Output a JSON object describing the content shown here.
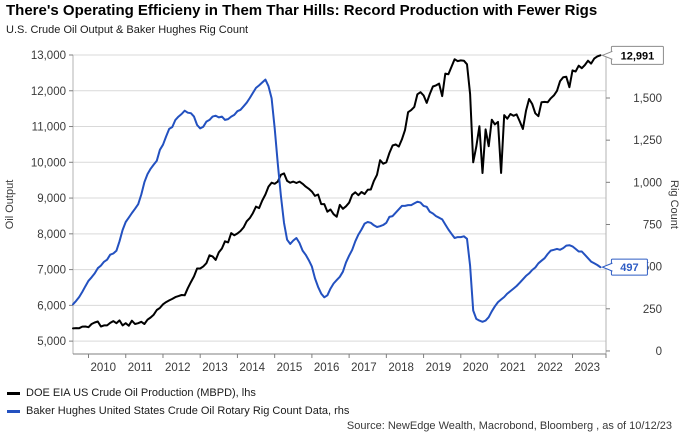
{
  "header": {
    "title": "There's Operating Efficieny in Them Thar Hills: Record Production with Fewer Rigs",
    "subtitle": "U.S. Crude Oil Output & Baker Hughes Rig Count"
  },
  "source": {
    "text": "Source: NewEdge Wealth, Macrobond, Bloomberg , as of 10/12/23"
  },
  "chart_data": {
    "type": "line",
    "title": "There's Operating Efficieny in Them Thar Hills: Record Production with Fewer Rigs",
    "subtitle": "U.S. Crude Oil Output & Baker Hughes Rig Count",
    "grid": "horizontal",
    "legend_position": "bottom-left",
    "left_axis": {
      "label": "Oil Output",
      "min": 4640,
      "max": 13000,
      "ticks": [
        {
          "v": 5000,
          "label": "5,000"
        },
        {
          "v": 6000,
          "label": "6,000"
        },
        {
          "v": 7000,
          "label": "7,000"
        },
        {
          "v": 8000,
          "label": "8,000"
        },
        {
          "v": 9000,
          "label": "9,000"
        },
        {
          "v": 10000,
          "label": "10,000"
        },
        {
          "v": 11000,
          "label": "11,000"
        },
        {
          "v": 12000,
          "label": "12,000"
        },
        {
          "v": 13000,
          "label": "13,000"
        }
      ]
    },
    "right_axis": {
      "label": "Rig Count",
      "min": -18,
      "max": 1755,
      "ticks": [
        {
          "v": 0,
          "label": "0"
        },
        {
          "v": 250,
          "label": "250"
        },
        {
          "v": 500,
          "label": "500"
        },
        {
          "v": 750,
          "label": "750"
        },
        {
          "v": 1000,
          "label": "1,000"
        },
        {
          "v": 1250,
          "label": "1,250"
        },
        {
          "v": 1500,
          "label": "1,500"
        }
      ]
    },
    "x_axis": {
      "years": [
        2010,
        2011,
        2012,
        2013,
        2014,
        2015,
        2016,
        2017,
        2018,
        2019,
        2020,
        2021,
        2022,
        2023
      ]
    },
    "callouts": [
      {
        "text": "12,991",
        "series": 0,
        "border": "#8c8c8c",
        "color": "#000000",
        "w": 52,
        "h": 18
      },
      {
        "text": "497",
        "series": 1,
        "border": "#2e5cc4",
        "color": "#2e5cc4",
        "w": 36,
        "h": 16
      }
    ],
    "series": [
      {
        "name": "DOE EIA US Crude Oil Production (MBPD), lhs",
        "axis": "left",
        "color": "#000000",
        "start_year": 2009,
        "start_month": 8,
        "frequency": "monthly",
        "values": [
          5355,
          5364,
          5360,
          5405,
          5410,
          5390,
          5480,
          5520,
          5550,
          5410,
          5440,
          5440,
          5510,
          5560,
          5500,
          5580,
          5440,
          5500,
          5430,
          5570,
          5480,
          5500,
          5540,
          5480,
          5600,
          5660,
          5740,
          5870,
          5930,
          6030,
          6090,
          6140,
          6180,
          6230,
          6260,
          6290,
          6280,
          6480,
          6650,
          6810,
          7030,
          7030,
          7090,
          7180,
          7400,
          7370,
          7270,
          7480,
          7590,
          7790,
          7760,
          8020,
          7960,
          8010,
          8080,
          8180,
          8350,
          8440,
          8580,
          8760,
          8720,
          8930,
          9100,
          9320,
          9430,
          9400,
          9460,
          9650,
          9690,
          9480,
          9430,
          9460,
          9420,
          9460,
          9400,
          9320,
          9260,
          9180,
          9060,
          9100,
          8830,
          8830,
          8620,
          8680,
          8550,
          8480,
          8810,
          8700,
          8770,
          8870,
          9090,
          9160,
          9080,
          9170,
          9110,
          9230,
          9240,
          9480,
          9650,
          10060,
          9960,
          10000,
          10260,
          10470,
          10500,
          10440,
          10640,
          10900,
          11400,
          11460,
          11550,
          11900,
          11960,
          11870,
          11660,
          11910,
          12120,
          12150,
          12200,
          11850,
          12480,
          12460,
          12670,
          12880,
          12830,
          12850,
          12840,
          12740,
          11910,
          10000,
          10440,
          11010,
          9700,
          10920,
          10450,
          11190,
          11060,
          11130,
          9700,
          11320,
          11220,
          11350,
          11300,
          11340,
          11140,
          10930,
          11440,
          11770,
          11630,
          11370,
          11290,
          11680,
          11690,
          11680,
          11790,
          11870,
          12000,
          12270,
          12380,
          12390,
          12100,
          12570,
          12540,
          12700,
          12630,
          12720,
          12840,
          12760,
          12900,
          12960,
          12991
        ]
      },
      {
        "name": "Baker Hughes United States Crude Oil Rotary Rig Count Data, rhs",
        "axis": "right",
        "color": "#2351c0",
        "start_year": 2009,
        "start_month": 8,
        "frequency": "monthly",
        "values": [
          277,
          297,
          320,
          350,
          384,
          416,
          437,
          460,
          491,
          506,
          529,
          541,
          571,
          578,
          594,
          650,
          717,
          765,
          791,
          818,
          843,
          870,
          928,
          1001,
          1049,
          1080,
          1105,
          1128,
          1193,
          1223,
          1272,
          1317,
          1328,
          1370,
          1390,
          1405,
          1425,
          1413,
          1410,
          1390,
          1340,
          1320,
          1330,
          1360,
          1370,
          1390,
          1395,
          1385,
          1390,
          1370,
          1375,
          1390,
          1400,
          1422,
          1430,
          1451,
          1472,
          1500,
          1530,
          1560,
          1575,
          1592,
          1609,
          1570,
          1499,
          1320,
          1110,
          920,
          760,
          660,
          635,
          655,
          670,
          640,
          595,
          570,
          538,
          500,
          430,
          380,
          340,
          318,
          330,
          370,
          400,
          420,
          440,
          470,
          525,
          565,
          600,
          650,
          690,
          720,
          755,
          765,
          760,
          745,
          735,
          740,
          747,
          760,
          795,
          800,
          820,
          840,
          860,
          860,
          865,
          865,
          875,
          885,
          880,
          860,
          855,
          825,
          815,
          800,
          790,
          780,
          750,
          720,
          695,
          670,
          675,
          675,
          680,
          665,
          505,
          240,
          190,
          180,
          173,
          180,
          200,
          235,
          265,
          290,
          305,
          320,
          340,
          355,
          370,
          385,
          405,
          425,
          445,
          460,
          480,
          495,
          520,
          535,
          550,
          575,
          595,
          600,
          605,
          600,
          610,
          625,
          627,
          620,
          605,
          590,
          590,
          570,
          550,
          530,
          520,
          510,
          497
        ]
      }
    ]
  }
}
